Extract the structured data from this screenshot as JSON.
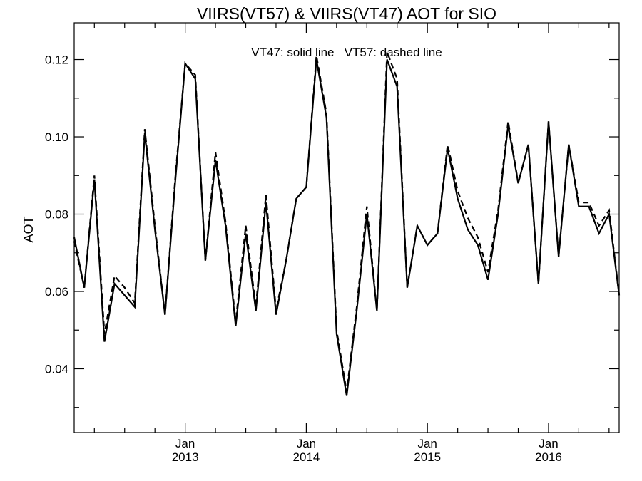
{
  "chart_data": {
    "type": "line",
    "title": "VIIRS(VT57) & VIIRS(VT47)  AOT for SIO",
    "ylabel": "AOT",
    "xlabel": "",
    "annotation": "VT47: solid line   VT57: dashed line",
    "xlim": [
      "2012-02",
      "2016-08"
    ],
    "ylim": [
      0.0235,
      0.1295
    ],
    "grid": false,
    "x_ticks": [
      {
        "month": "Jan",
        "year": "2013",
        "date": "2013-01"
      },
      {
        "month": "Jan",
        "year": "2014",
        "date": "2014-01"
      },
      {
        "month": "Jan",
        "year": "2015",
        "date": "2015-01"
      },
      {
        "month": "Jan",
        "year": "2016",
        "date": "2016-01"
      }
    ],
    "y_ticks": [
      "0.04",
      "0.06",
      "0.08",
      "0.10",
      "0.12"
    ],
    "x": [
      "2012-02",
      "2012-03",
      "2012-04",
      "2012-05",
      "2012-06",
      "2012-07",
      "2012-08",
      "2012-09",
      "2012-10",
      "2012-11",
      "2012-12",
      "2013-01",
      "2013-02",
      "2013-03",
      "2013-04",
      "2013-05",
      "2013-06",
      "2013-07",
      "2013-08",
      "2013-09",
      "2013-10",
      "2013-11",
      "2013-12",
      "2014-01",
      "2014-02",
      "2014-03",
      "2014-04",
      "2014-05",
      "2014-06",
      "2014-07",
      "2014-08",
      "2014-09",
      "2014-10",
      "2014-11",
      "2014-12",
      "2015-01",
      "2015-02",
      "2015-03",
      "2015-04",
      "2015-05",
      "2015-06",
      "2015-07",
      "2015-08",
      "2015-09",
      "2015-10",
      "2015-11",
      "2015-12",
      "2016-01",
      "2016-02",
      "2016-03",
      "2016-04",
      "2016-05",
      "2016-06",
      "2016-07",
      "2016-08"
    ],
    "series": [
      {
        "values": [
          0.074,
          0.061,
          0.089,
          0.047,
          0.062,
          0.059,
          0.056,
          0.101,
          0.076,
          0.054,
          0.088,
          0.119,
          0.115,
          0.068,
          0.094,
          0.077,
          0.051,
          0.075,
          0.055,
          0.083,
          0.054,
          0.068,
          0.084,
          0.087,
          0.12,
          0.105,
          0.049,
          0.033,
          0.055,
          0.08,
          0.055,
          0.12,
          0.113,
          0.061,
          0.077,
          0.072,
          0.075,
          0.097,
          0.084,
          0.076,
          0.072,
          0.063,
          0.08,
          0.103,
          0.088,
          0.098,
          0.062,
          0.104,
          0.069,
          0.098,
          0.082,
          0.082,
          0.075,
          0.08,
          0.059
        ],
        "dash": false
      },
      {
        "values": [
          0.073,
          0.061,
          0.09,
          0.049,
          0.064,
          0.061,
          0.057,
          0.102,
          0.077,
          0.054,
          0.089,
          0.119,
          0.116,
          0.068,
          0.096,
          0.078,
          0.052,
          0.077,
          0.056,
          0.085,
          0.055,
          0.068,
          0.084,
          0.087,
          0.121,
          0.106,
          0.05,
          0.034,
          0.056,
          0.082,
          0.055,
          0.122,
          0.115,
          0.061,
          0.077,
          0.072,
          0.075,
          0.098,
          0.086,
          0.079,
          0.074,
          0.065,
          0.081,
          0.104,
          0.088,
          0.098,
          0.062,
          0.104,
          0.069,
          0.098,
          0.083,
          0.083,
          0.077,
          0.081,
          0.059
        ],
        "dash": true
      }
    ]
  }
}
